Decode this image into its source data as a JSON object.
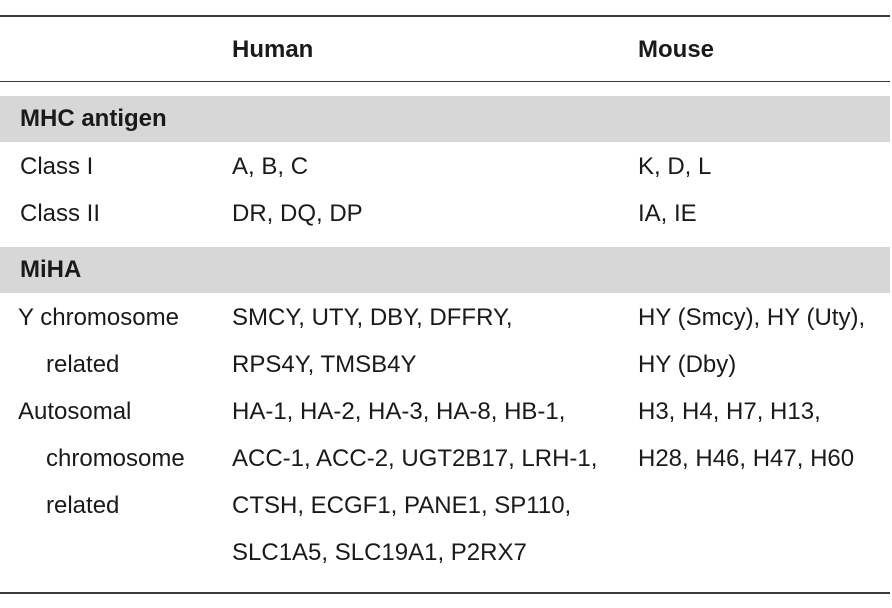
{
  "table": {
    "headers": [
      "",
      "Human",
      "Mouse"
    ],
    "sections": [
      {
        "label": "MHC antigen",
        "rows": [
          {
            "category": [
              "Class I"
            ],
            "human": [
              "A, B, C"
            ],
            "mouse": [
              "K, D, L"
            ]
          },
          {
            "category": [
              "Class II"
            ],
            "human": [
              "DR, DQ, DP"
            ],
            "mouse": [
              "IA, IE"
            ]
          }
        ]
      },
      {
        "label": "MiHA",
        "rows": [
          {
            "category": [
              "Y chromosome",
              "related"
            ],
            "human": [
              "SMCY, UTY, DBY, DFFRY,",
              "RPS4Y, TMSB4Y"
            ],
            "mouse": [
              "HY (Smcy), HY (Uty),",
              "HY (Dby)"
            ]
          },
          {
            "category": [
              "Autosomal",
              "chromosome",
              "related"
            ],
            "human": [
              "HA-1, HA-2, HA-3, HA-8, HB-1,",
              "ACC-1, ACC-2, UGT2B17, LRH-1,",
              "CTSH, ECGF1, PANE1, SP110,",
              "SLC1A5, SLC19A1, P2RX7"
            ],
            "mouse": [
              "H3, H4, H7, H13,",
              "H28, H46, H47, H60"
            ]
          }
        ]
      }
    ]
  }
}
